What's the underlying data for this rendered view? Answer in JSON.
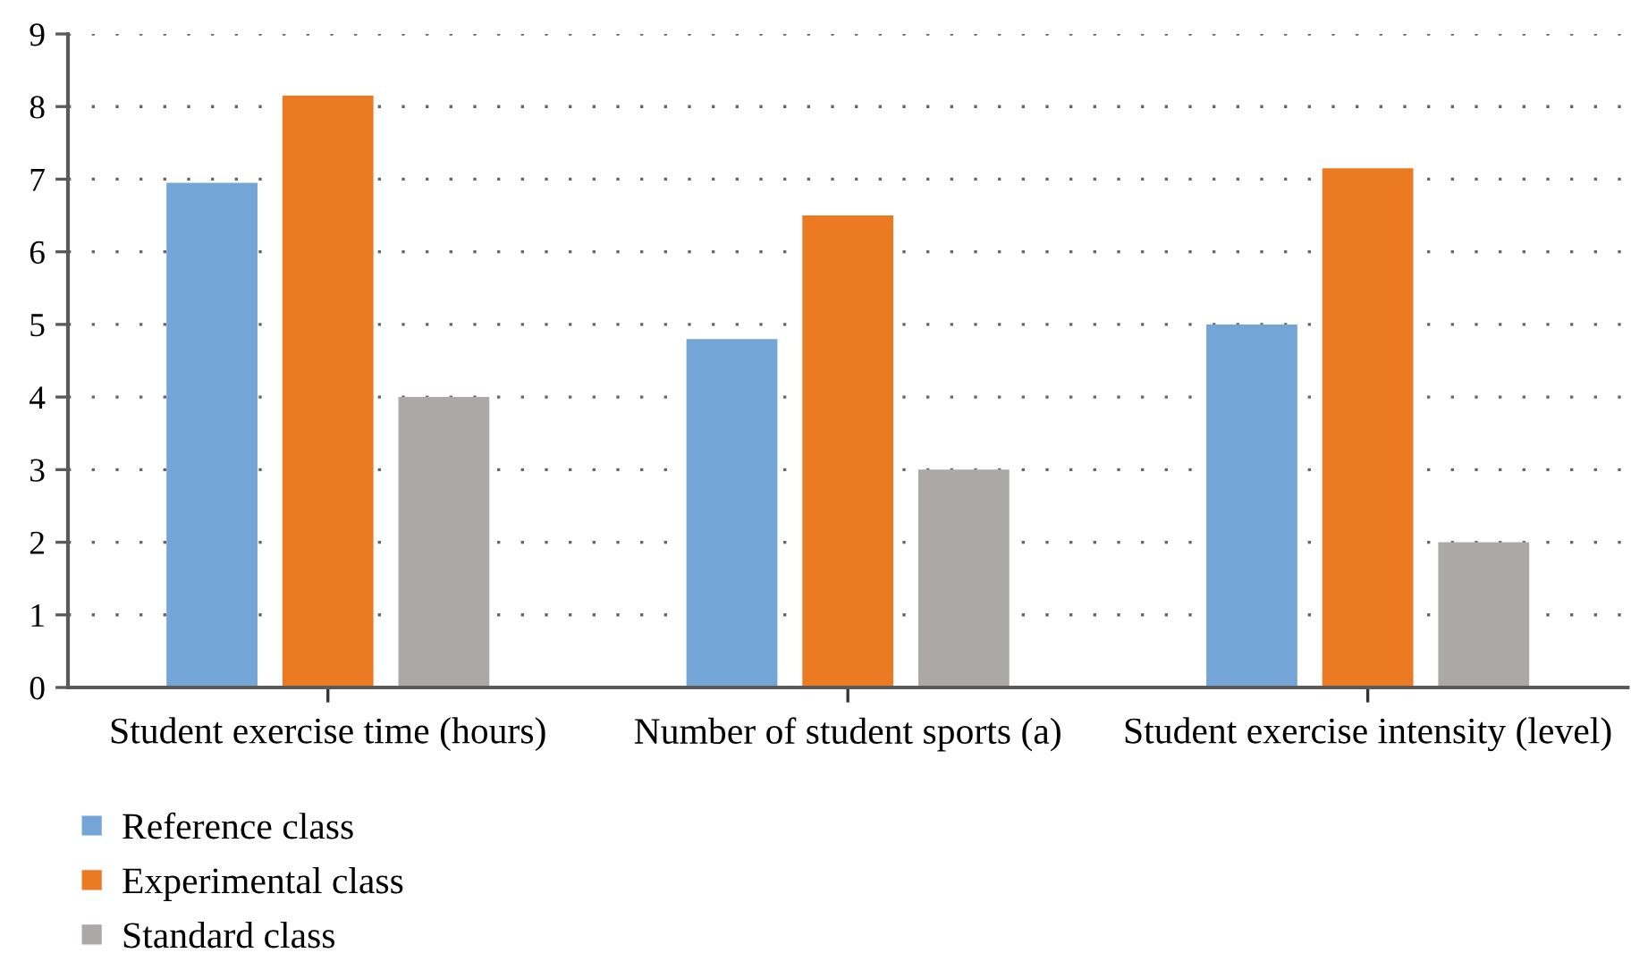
{
  "chart_data": {
    "type": "bar",
    "categories": [
      "Student exercise time (hours)",
      "Number of student sports (a)",
      "Student exercise intensity (level)"
    ],
    "series": [
      {
        "name": "Reference class",
        "color": "#73a5d6",
        "values": [
          6.95,
          4.8,
          5.0
        ]
      },
      {
        "name": "Experimental class",
        "color": "#ec7a23",
        "values": [
          8.15,
          6.5,
          7.15
        ]
      },
      {
        "name": "Standard class",
        "color": "#aba8a7",
        "values": [
          4.0,
          3.0,
          2.0
        ]
      }
    ],
    "ylim": [
      0,
      9
    ],
    "yticks": [
      0,
      1,
      2,
      3,
      4,
      5,
      6,
      7,
      8,
      9
    ],
    "grid": "y",
    "legend": "bottom left"
  }
}
